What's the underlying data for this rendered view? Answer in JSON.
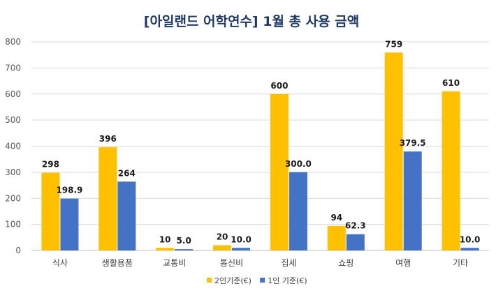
{
  "chart_data": {
    "type": "bar",
    "title": "[아일랜드 어학연수] 1월 총 사용 금액",
    "xlabel": "",
    "ylabel": "",
    "categories": [
      "식사",
      "생활용품",
      "교통비",
      "통신비",
      "집세",
      "쇼핑",
      "여행",
      "기타"
    ],
    "series": [
      {
        "name": "2인기준(€)",
        "color": "#ffc000",
        "values": [
          298,
          396,
          10,
          20,
          600,
          94,
          759,
          610
        ],
        "labels": [
          "298",
          "396",
          "10",
          "20",
          "600",
          "94",
          "759",
          "610"
        ]
      },
      {
        "name": "1인 기준(€)",
        "color": "#4472c4",
        "values": [
          198.9,
          264,
          5.0,
          10.0,
          300.0,
          62.3,
          379.5,
          10.0
        ],
        "labels": [
          "198.9",
          "264",
          "5.0",
          "10.0",
          "300.0",
          "62.3",
          "379.5",
          "10.0"
        ]
      }
    ],
    "ylim": [
      0,
      800
    ],
    "yticks": [
      0,
      100,
      200,
      300,
      400,
      500,
      600,
      700,
      800
    ],
    "grid": true,
    "legend": "bottom"
  }
}
